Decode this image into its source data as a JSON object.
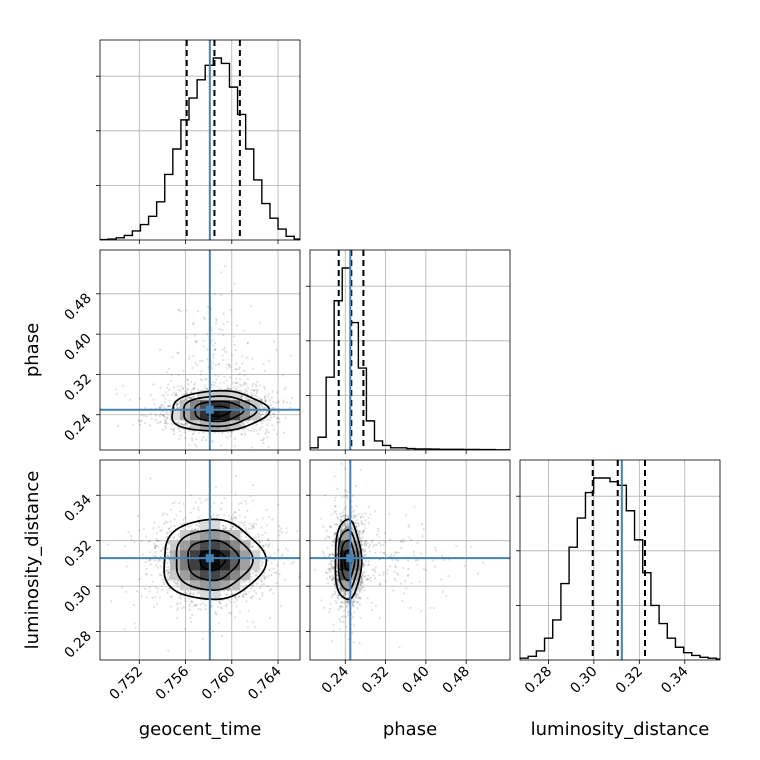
{
  "colors": {
    "truth": "#4682b4",
    "hist": "#000000",
    "grid": "#b0b0b0",
    "quantile": "#000000",
    "density": "#000000"
  },
  "chart_data": {
    "type": "heatmap",
    "title": "",
    "parameters": [
      "geocent_time",
      "phase",
      "luminosity_distance"
    ],
    "grid": true,
    "axes": {
      "geocent_time": {
        "label": "geocent_time",
        "range": [
          0.7486,
          0.7659
        ],
        "ticks": [
          0.752,
          0.756,
          0.76,
          0.764
        ],
        "tick_labels": [
          "0.752",
          "0.756",
          "0.760",
          "0.764"
        ],
        "truth": 0.7581,
        "quantiles": [
          0.7561,
          0.7585,
          0.7607
        ]
      },
      "phase": {
        "label": "phase",
        "range": [
          0.17,
          0.567
        ],
        "ticks": [
          0.24,
          0.32,
          0.4,
          0.48
        ],
        "tick_labels": [
          "0.24",
          "0.32",
          "0.40",
          "0.48"
        ],
        "truth": 0.25,
        "quantiles": [
          0.227,
          0.252,
          0.276
        ]
      },
      "luminosity_distance": {
        "label": "luminosity_distance",
        "range": [
          0.2675,
          0.3555
        ],
        "ticks": [
          0.28,
          0.3,
          0.32,
          0.34
        ],
        "tick_labels": [
          "0.28",
          "0.30",
          "0.32",
          "0.34"
        ],
        "truth": 0.3123,
        "quantiles": [
          0.2995,
          0.3105,
          0.3225
        ]
      }
    },
    "histograms": {
      "geocent_time": {
        "bin_edges": [
          0.7486,
          0.7493,
          0.75,
          0.7507,
          0.7514,
          0.7521,
          0.7528,
          0.7535,
          0.7542,
          0.7549,
          0.7556,
          0.7563,
          0.757,
          0.7577,
          0.7584,
          0.7591,
          0.7598,
          0.7605,
          0.7612,
          0.7619,
          0.7626,
          0.7633,
          0.764,
          0.7647,
          0.7654,
          0.7659
        ],
        "counts": [
          0.002,
          0.005,
          0.012,
          0.025,
          0.05,
          0.085,
          0.13,
          0.21,
          0.36,
          0.5,
          0.66,
          0.78,
          0.88,
          0.96,
          1.0,
          0.97,
          0.84,
          0.69,
          0.5,
          0.33,
          0.2,
          0.12,
          0.06,
          0.02,
          0.005
        ]
      },
      "phase": {
        "bin_edges": [
          0.17,
          0.186,
          0.202,
          0.218,
          0.234,
          0.25,
          0.266,
          0.282,
          0.298,
          0.314,
          0.33,
          0.346,
          0.362,
          0.378,
          0.394,
          0.41,
          0.426,
          0.442,
          0.458,
          0.474,
          0.49,
          0.506,
          0.522,
          0.538,
          0.554,
          0.567
        ],
        "counts": [
          0.012,
          0.07,
          0.4,
          0.82,
          1.0,
          0.7,
          0.45,
          0.16,
          0.05,
          0.025,
          0.012,
          0.012,
          0.008,
          0.006,
          0.006,
          0.005,
          0.004,
          0.004,
          0.004,
          0.003,
          0.003,
          0.002,
          0.002,
          0.001,
          0.001
        ]
      },
      "luminosity_distance": {
        "bin_edges": [
          0.2675,
          0.2711,
          0.2747,
          0.2783,
          0.2819,
          0.2855,
          0.2891,
          0.2927,
          0.2963,
          0.2999,
          0.3035,
          0.3071,
          0.3107,
          0.3143,
          0.3179,
          0.3215,
          0.3251,
          0.3287,
          0.3323,
          0.3359,
          0.3395,
          0.3431,
          0.3467,
          0.3503,
          0.3539,
          0.3555
        ],
        "counts": [
          0.01,
          0.02,
          0.05,
          0.12,
          0.22,
          0.42,
          0.62,
          0.78,
          0.92,
          1.0,
          1.0,
          0.98,
          0.96,
          0.82,
          0.66,
          0.48,
          0.3,
          0.2,
          0.12,
          0.07,
          0.04,
          0.025,
          0.015,
          0.01,
          0.005
        ]
      }
    },
    "pairs": [
      {
        "x": "geocent_time",
        "y": "phase",
        "center": [
          0.7588,
          0.247
        ],
        "sd": [
          0.0021,
          0.02
        ],
        "rho": 0.05
      },
      {
        "x": "geocent_time",
        "y": "luminosity_distance",
        "center": [
          0.7583,
          0.3115
        ],
        "sd": [
          0.0022,
          0.0088
        ],
        "rho": 0.0
      },
      {
        "x": "phase",
        "y": "luminosity_distance",
        "center": [
          0.245,
          0.3115
        ],
        "sd": [
          0.013,
          0.0088
        ],
        "rho": 0.0
      }
    ]
  }
}
